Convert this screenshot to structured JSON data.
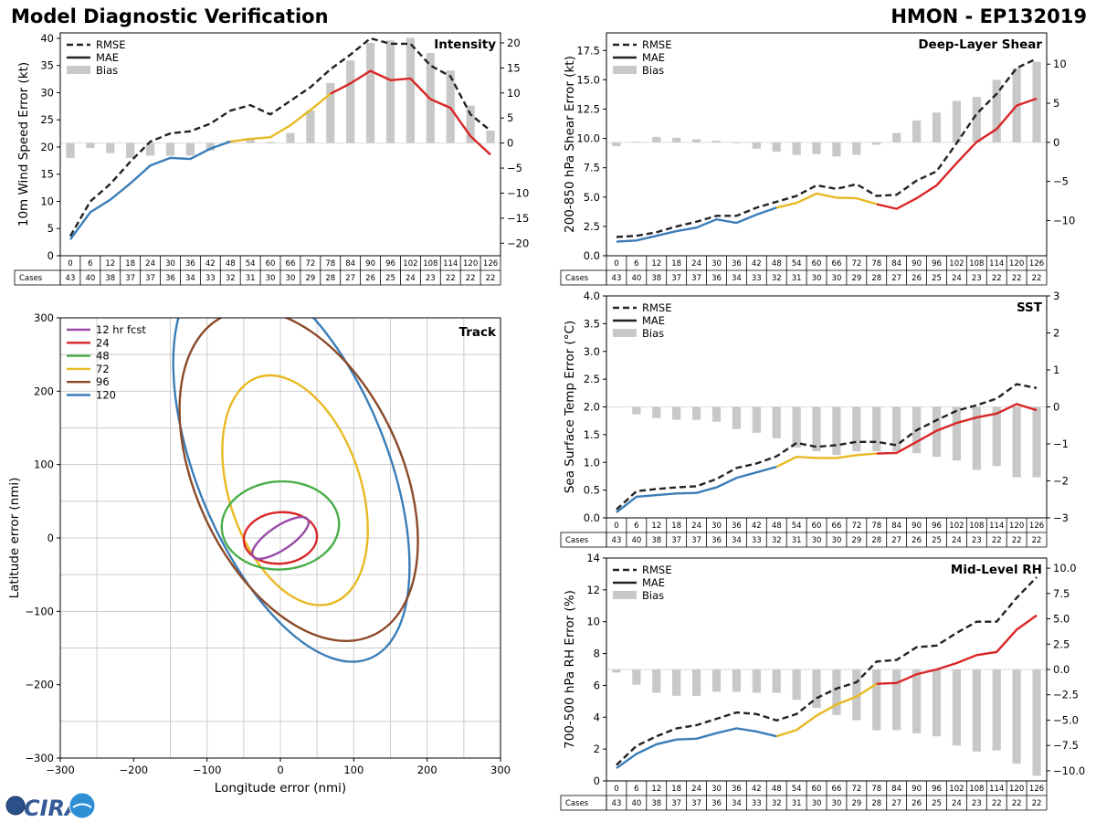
{
  "header": {
    "title": "Model Diagnostic Verification",
    "storm_id": "HMON - EP132019"
  },
  "logo_text": "CIRA",
  "legend_labels": {
    "rmse": "RMSE",
    "mae": "MAE",
    "bias": "Bias"
  },
  "cases_label": "Cases",
  "colors": {
    "rmse": "#222222",
    "bias": "#c8c8c8",
    "mae_0_48": "#3a7db8",
    "mae_48_78": "#e8b923",
    "mae_78_plus": "#d92626",
    "track_12": "#9a4ca8",
    "track_24": "#d92626",
    "track_48": "#4aad4a",
    "track_72": "#e8b923",
    "track_96": "#8b4a28",
    "track_120": "#3a7db8"
  },
  "chart_data": [
    {
      "id": "intensity",
      "type": "line",
      "title": "Intensity",
      "ylabel": "10m Wind Speed Error (kt)",
      "ylim": [
        0,
        41
      ],
      "yticks": [
        0,
        5,
        10,
        15,
        20,
        25,
        30,
        35,
        40
      ],
      "y2lim": [
        -22.5,
        22
      ],
      "y2ticks": [
        -20,
        -15,
        -10,
        -5,
        0,
        5,
        10,
        15,
        20
      ],
      "x": [
        0,
        6,
        12,
        18,
        24,
        30,
        36,
        42,
        48,
        54,
        60,
        66,
        72,
        78,
        84,
        90,
        96,
        102,
        108,
        114,
        120,
        126
      ],
      "rmse": [
        3.6,
        10,
        13.2,
        17.3,
        21,
        22.5,
        22.9,
        24.3,
        26.7,
        27.7,
        26,
        28.5,
        31,
        34.3,
        37,
        40,
        39,
        39,
        35,
        33,
        26,
        23
      ],
      "mae": [
        3,
        8,
        10.3,
        13.3,
        16.6,
        18,
        17.8,
        19.7,
        21,
        21.5,
        21.8,
        24,
        26.8,
        29.8,
        31.7,
        34,
        32.3,
        32.6,
        28.8,
        27.2,
        22,
        18.6
      ],
      "bias": [
        -3,
        -1,
        -2,
        -3,
        -2.5,
        -2.5,
        -2.5,
        -1.5,
        0.5,
        1,
        0.2,
        2,
        6.5,
        12,
        16.5,
        20,
        20.5,
        21,
        18,
        14.5,
        7.5,
        2.5
      ],
      "cases": [
        43,
        40,
        38,
        37,
        37,
        36,
        34,
        33,
        32,
        31,
        30,
        30,
        29,
        28,
        27,
        26,
        25,
        24,
        23,
        22,
        22,
        22
      ]
    },
    {
      "id": "shear",
      "type": "line",
      "title": "Deep-Layer Shear",
      "ylabel": "200-850 hPa Shear Error (kt)",
      "ylim": [
        0,
        19
      ],
      "yticks": [
        0,
        2.5,
        5,
        7.5,
        10,
        12.5,
        15,
        17.5
      ],
      "ytick_labels": [
        "0.0",
        "2.5",
        "5.0",
        "7.5",
        "10.0",
        "12.5",
        "15.0",
        "17.5"
      ],
      "y2lim": [
        -14.5,
        14
      ],
      "y2ticks": [
        -10,
        -5,
        0,
        5,
        10
      ],
      "x": [
        0,
        6,
        12,
        18,
        24,
        30,
        36,
        42,
        48,
        54,
        60,
        66,
        72,
        78,
        84,
        90,
        96,
        102,
        108,
        114,
        120,
        126
      ],
      "rmse": [
        1.6,
        1.7,
        2,
        2.5,
        2.9,
        3.4,
        3.4,
        4.1,
        4.6,
        5.1,
        6,
        5.7,
        6.1,
        5.1,
        5.2,
        6.4,
        7.2,
        9.6,
        12.1,
        13.8,
        16,
        16.8
      ],
      "mae": [
        1.2,
        1.3,
        1.7,
        2.1,
        2.4,
        3.1,
        2.8,
        3.5,
        4.1,
        4.5,
        5.3,
        4.95,
        4.9,
        4.4,
        4,
        4.9,
        6,
        7.9,
        9.7,
        10.8,
        12.8,
        13.4
      ],
      "bias": [
        -0.5,
        0.1,
        0.7,
        0.6,
        0.4,
        0.2,
        -0.1,
        -0.8,
        -1.2,
        -1.6,
        -1.5,
        -1.8,
        -1.6,
        -0.3,
        1.2,
        2.8,
        3.8,
        5.3,
        5.8,
        8.0,
        9.5,
        10.3
      ],
      "cases": [
        43,
        40,
        38,
        37,
        37,
        36,
        34,
        33,
        32,
        31,
        30,
        30,
        29,
        28,
        27,
        26,
        25,
        24,
        23,
        22,
        22,
        22
      ]
    },
    {
      "id": "sst",
      "type": "line",
      "title": "SST",
      "ylabel": "Sea Surface Temp Error (°C)",
      "ylim": [
        0,
        4
      ],
      "yticks": [
        0,
        0.5,
        1,
        1.5,
        2,
        2.5,
        3,
        3.5,
        4
      ],
      "ytick_labels": [
        "0.0",
        "0.5",
        "1.0",
        "1.5",
        "2.0",
        "2.5",
        "3.0",
        "3.5",
        "4.0"
      ],
      "y2lim": [
        -3,
        3
      ],
      "y2ticks": [
        -3,
        -2,
        -1,
        0,
        1,
        2,
        3
      ],
      "x": [
        0,
        6,
        12,
        18,
        24,
        30,
        36,
        42,
        48,
        54,
        60,
        66,
        72,
        78,
        84,
        90,
        96,
        102,
        108,
        114,
        120,
        126
      ],
      "rmse": [
        0.15,
        0.48,
        0.52,
        0.55,
        0.57,
        0.7,
        0.9,
        0.98,
        1.11,
        1.35,
        1.28,
        1.31,
        1.37,
        1.37,
        1.31,
        1.58,
        1.76,
        1.93,
        2.03,
        2.15,
        2.41,
        2.34
      ],
      "mae": [
        0.1,
        0.38,
        0.41,
        0.44,
        0.45,
        0.55,
        0.72,
        0.82,
        0.92,
        1.1,
        1.08,
        1.08,
        1.13,
        1.16,
        1.17,
        1.37,
        1.57,
        1.71,
        1.81,
        1.88,
        2.05,
        1.94
      ],
      "bias": [
        0,
        -0.2,
        -0.3,
        -0.35,
        -0.35,
        -0.4,
        -0.6,
        -0.7,
        -0.85,
        -1.1,
        -1.2,
        -1.3,
        -1.2,
        -1.2,
        -1.2,
        -1.25,
        -1.35,
        -1.45,
        -1.7,
        -1.6,
        -1.9,
        -1.9
      ],
      "cases": [
        43,
        40,
        38,
        37,
        37,
        36,
        34,
        33,
        32,
        31,
        30,
        30,
        29,
        28,
        27,
        26,
        25,
        24,
        23,
        22,
        22,
        22
      ]
    },
    {
      "id": "rh",
      "type": "line",
      "title": "Mid-Level RH",
      "ylabel": "700-500 hPa RH Error (%)",
      "ylim": [
        0,
        14
      ],
      "yticks": [
        0,
        2,
        4,
        6,
        8,
        10,
        12,
        14
      ],
      "y2lim": [
        -11,
        11
      ],
      "y2ticks": [
        -10,
        -7.5,
        -5,
        -2.5,
        0,
        2.5,
        5,
        7.5,
        10
      ],
      "y2tick_labels": [
        "−10.0",
        "−7.5",
        "−5.0",
        "−2.5",
        "0.0",
        "2.5",
        "5.0",
        "7.5",
        "10.0"
      ],
      "x": [
        0,
        6,
        12,
        18,
        24,
        30,
        36,
        42,
        48,
        54,
        60,
        66,
        72,
        78,
        84,
        90,
        96,
        102,
        108,
        114,
        120,
        126
      ],
      "rmse": [
        1,
        2.2,
        2.8,
        3.3,
        3.5,
        3.9,
        4.3,
        4.2,
        3.8,
        4.2,
        5.2,
        5.8,
        6.2,
        7.5,
        7.6,
        8.4,
        8.5,
        9.3,
        10,
        10,
        11.5,
        12.8
      ],
      "mae": [
        0.8,
        1.7,
        2.3,
        2.6,
        2.65,
        3,
        3.3,
        3.1,
        2.8,
        3.2,
        4.1,
        4.8,
        5.3,
        6.1,
        6.15,
        6.7,
        7,
        7.4,
        7.9,
        8.1,
        9.5,
        10.4
      ],
      "bias": [
        -0.3,
        -1.5,
        -2.3,
        -2.6,
        -2.6,
        -2.2,
        -2.2,
        -2.3,
        -2.3,
        -3.0,
        -3.8,
        -4.5,
        -5.0,
        -6.0,
        -6.0,
        -6.3,
        -6.6,
        -7.5,
        -8.1,
        -8.0,
        -9.3,
        -10.5
      ],
      "cases": [
        43,
        40,
        38,
        37,
        37,
        36,
        34,
        33,
        32,
        31,
        30,
        30,
        29,
        28,
        27,
        26,
        25,
        24,
        23,
        22,
        22,
        22
      ]
    },
    {
      "id": "track",
      "type": "scatter",
      "title": "Track",
      "xlabel": "Longitude error (nmi)",
      "ylabel": "Latitude error (nmi)",
      "xlim": [
        -300,
        300
      ],
      "ylim": [
        -300,
        300
      ],
      "ticks": [
        -300,
        -200,
        -100,
        0,
        100,
        200,
        300
      ],
      "tick_labels": [
        "−300",
        "−200",
        "−100",
        "0",
        "100",
        "200",
        "300"
      ],
      "grid_lines": [
        -250,
        -150,
        -100,
        -50,
        0,
        50,
        100,
        150,
        200,
        250
      ],
      "ellipses": [
        {
          "label": "12 hr fcst",
          "color_key": "track_12",
          "cx": 0,
          "cy": 0,
          "a": 45,
          "b": 16,
          "angle": 34
        },
        {
          "label": "24",
          "color_key": "track_24",
          "cx": 0,
          "cy": 0,
          "a": 50,
          "b": 35,
          "angle": 5
        },
        {
          "label": "48",
          "color_key": "track_48",
          "cx": 0,
          "cy": 17,
          "a": 80,
          "b": 60,
          "angle": 3
        },
        {
          "label": "72",
          "color_key": "track_72",
          "cx": 20,
          "cy": 65,
          "a": 162,
          "b": 90,
          "angle": -72
        },
        {
          "label": "96",
          "color_key": "track_96",
          "cx": 25,
          "cy": 85,
          "a": 240,
          "b": 140,
          "angle": -65
        },
        {
          "label": "120",
          "color_key": "track_120",
          "cx": 15,
          "cy": 100,
          "a": 285,
          "b": 130,
          "angle": -68
        }
      ]
    }
  ]
}
